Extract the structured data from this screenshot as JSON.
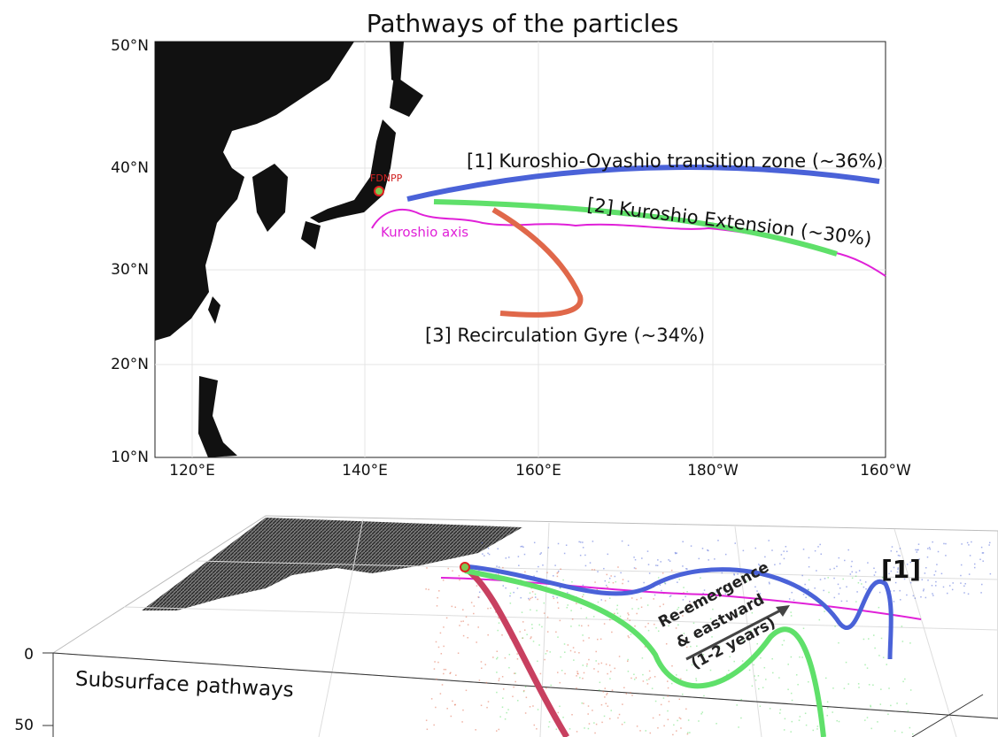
{
  "title": "Pathways of the particles",
  "map": {
    "lat_ticks": [
      "50°N",
      "40°N",
      "30°N",
      "20°N",
      "10°N"
    ],
    "lon_ticks": [
      "120°E",
      "140°E",
      "160°E",
      "180°W",
      "160°W"
    ],
    "site_label": "FDNPP",
    "kuroshio_label": "Kuroshio axis",
    "kuroshio_color": "#e020d8",
    "pathways": [
      {
        "label": "[1] Kuroshio-Oyashio transition zone (~36%)",
        "color": "#4a62d8"
      },
      {
        "label": "[2] Kuroshio Extension (~30%)",
        "color": "#5fe06a"
      },
      {
        "label": "[3] Recirculation Gyre (~34%)",
        "color": "#e0684a"
      }
    ]
  },
  "panel_3d": {
    "depth_ticks": [
      0,
      50
    ],
    "label": "Subsurface pathways",
    "annotation": [
      "Re-emergence",
      "& eastward",
      "(1-2 years)"
    ],
    "pathway_label": "[1]"
  }
}
